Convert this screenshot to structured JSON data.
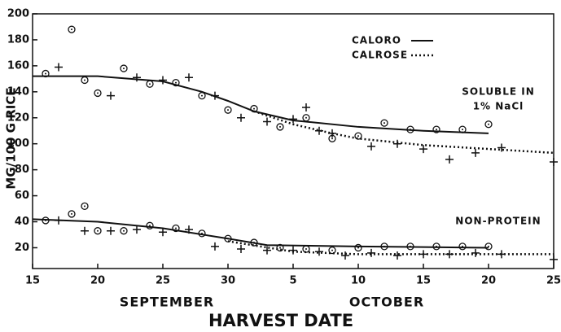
{
  "chart_data": {
    "type": "scatter",
    "ylabel": "MG/100 G RICE",
    "xlabel": "HARVEST DATE",
    "xlim": [
      15,
      55
    ],
    "xticks": [
      15,
      20,
      25,
      30,
      {
        "value": 35,
        "label": "5"
      },
      {
        "value": 40,
        "label": "10"
      },
      {
        "value": 45,
        "label": "15"
      },
      {
        "value": 50,
        "label": "20"
      },
      {
        "value": 55,
        "label": "25"
      }
    ],
    "ylim": [
      4,
      200
    ],
    "yticks": [
      20,
      40,
      60,
      80,
      100,
      120,
      140,
      160,
      180,
      200
    ],
    "months": [
      "SEPTEMBER",
      "OCTOBER"
    ],
    "annotations": [
      "SOLUBLE IN",
      "1% NaCl",
      "NON-PROTEIN"
    ],
    "series": [
      {
        "name": "CALORO",
        "color": "#111111",
        "line": "solid",
        "marker": "circle",
        "soluble": {
          "x": [
            16,
            18,
            19,
            20,
            22,
            24,
            26,
            28,
            30,
            32,
            34,
            36,
            38,
            40,
            42,
            44,
            46,
            48,
            50
          ],
          "values": [
            154,
            188,
            149,
            139,
            158,
            146,
            147,
            137,
            126,
            127,
            113,
            120,
            104,
            106,
            116,
            111,
            111,
            111,
            115
          ],
          "fit_x": [
            15,
            20,
            25,
            28,
            30,
            32,
            35,
            40,
            45,
            50
          ],
          "fit_values": [
            152,
            152,
            148,
            140,
            133,
            125,
            118,
            113,
            110,
            108
          ]
        },
        "non_protein": {
          "x": [
            16,
            18,
            19,
            20,
            22,
            24,
            26,
            28,
            30,
            32,
            34,
            36,
            38,
            40,
            42,
            44,
            46,
            48,
            50
          ],
          "values": [
            41,
            46,
            52,
            33,
            33,
            37,
            35,
            31,
            27,
            24,
            20,
            19,
            18,
            20,
            21,
            21,
            21,
            21,
            21
          ],
          "fit_x": [
            15,
            20,
            25,
            30,
            33,
            40,
            50
          ],
          "fit_values": [
            42,
            40,
            35,
            27,
            22,
            21,
            20
          ]
        }
      },
      {
        "name": "CALROSE",
        "color": "#111111",
        "line": "dotted",
        "marker": "plus",
        "soluble": {
          "x": [
            17,
            21,
            23,
            25,
            27,
            29,
            31,
            33,
            35,
            36,
            37,
            38,
            41,
            43,
            45,
            47,
            49,
            51,
            55
          ],
          "values": [
            159,
            137,
            151,
            149,
            151,
            137,
            120,
            117,
            119,
            128,
            110,
            108,
            98,
            100,
            96,
            88,
            93,
            97,
            86
          ],
          "fit_x": [
            32,
            35,
            38,
            40,
            45,
            50,
            55
          ],
          "fit_values": [
            125,
            115,
            108,
            104,
            99,
            96,
            93
          ]
        },
        "non_protein": {
          "x": [
            17,
            19,
            21,
            23,
            25,
            27,
            29,
            31,
            33,
            35,
            37,
            39,
            41,
            43,
            45,
            47,
            49,
            51,
            55
          ],
          "values": [
            41,
            33,
            33,
            34,
            32,
            34,
            21,
            19,
            18,
            18,
            17,
            14,
            16,
            14,
            15,
            15,
            16,
            15,
            11
          ],
          "fit_x": [
            30,
            35,
            40,
            45,
            55
          ],
          "fit_values": [
            25,
            17,
            15,
            15,
            15
          ]
        }
      }
    ]
  }
}
